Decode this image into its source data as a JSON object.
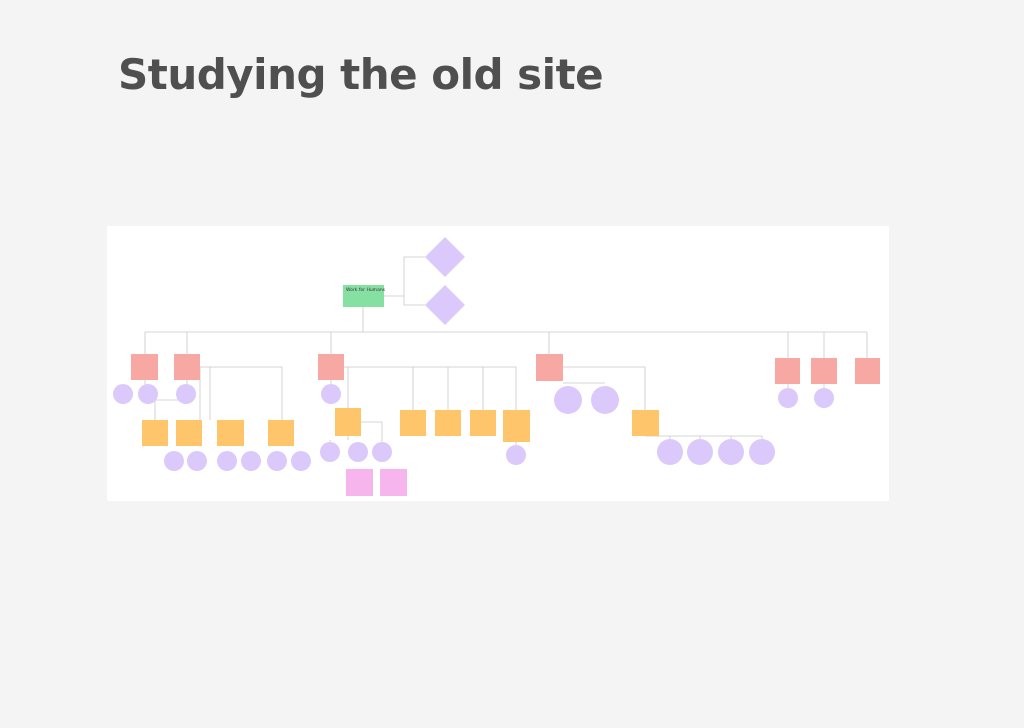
{
  "header": {
    "title": "Studying the old site"
  },
  "nodes": [
    {
      "label": "Work for Humans"
    }
  ]
}
